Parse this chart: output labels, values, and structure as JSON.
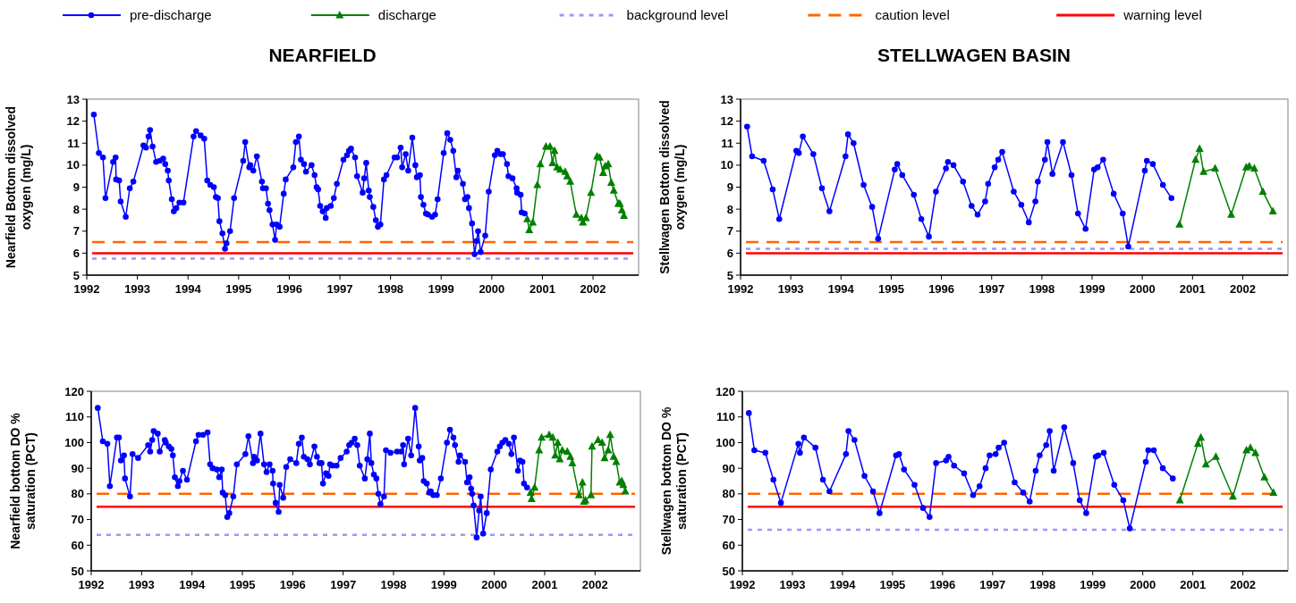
{
  "chart_data": [
    {
      "type": "line",
      "title": "NEARFIELD",
      "ylabel": "Nearfield Bottom dissolved oxygen (mg/L)",
      "xlim": [
        1992,
        2002.9
      ],
      "xticks": [
        1992,
        1993,
        1994,
        1995,
        1996,
        1997,
        1998,
        1999,
        2000,
        2001,
        2002
      ],
      "ylim": [
        5,
        13
      ],
      "yticks": [
        5,
        6,
        7,
        8,
        9,
        10,
        11,
        12,
        13
      ],
      "legend": "top",
      "series": [
        {
          "name": "pre-discharge",
          "color": "#0000ff",
          "marker": "circle",
          "x": [
            1992.14,
            1992.24,
            1992.32,
            1992.37,
            1992.52,
            1992.57,
            1992.58,
            1992.64,
            1992.67,
            1992.77,
            1992.85,
            1992.92,
            1993.12,
            1993.17,
            1993.22,
            1993.25,
            1993.3,
            1993.37,
            1993.44,
            1993.51,
            1993.55,
            1993.6,
            1993.62,
            1993.68,
            1993.72,
            1993.77,
            1993.83,
            1993.91,
            1994.11,
            1994.16,
            1994.25,
            1994.32,
            1994.38,
            1994.44,
            1994.51,
            1994.55,
            1994.59,
            1994.62,
            1994.68,
            1994.73,
            1994.76,
            1994.83,
            1994.91,
            1995.09,
            1995.13,
            1995.21,
            1995.23,
            1995.29,
            1995.36,
            1995.46,
            1995.48,
            1995.54,
            1995.58,
            1995.61,
            1995.67,
            1995.72,
            1995.75,
            1995.81,
            1995.89,
            1995.93,
            1996.08,
            1996.13,
            1996.19,
            1996.23,
            1996.29,
            1996.33,
            1996.44,
            1996.5,
            1996.54,
            1996.57,
            1996.61,
            1996.66,
            1996.72,
            1996.74,
            1996.82,
            1996.88,
            1996.94,
            1997.07,
            1997.14,
            1997.18,
            1997.22,
            1997.3,
            1997.34,
            1997.45,
            1997.48,
            1997.52,
            1997.57,
            1997.59,
            1997.66,
            1997.71,
            1997.75,
            1997.8,
            1997.87,
            1997.92,
            1998.08,
            1998.13,
            1998.2,
            1998.23,
            1998.3,
            1998.35,
            1998.43,
            1998.49,
            1998.52,
            1998.58,
            1998.6,
            1998.65,
            1998.7,
            1998.74,
            1998.82,
            1998.88,
            1998.93,
            1999.05,
            1999.12,
            1999.18,
            1999.24,
            1999.3,
            1999.33,
            1999.43,
            1999.47,
            1999.52,
            1999.55,
            1999.61,
            1999.66,
            1999.7,
            1999.73,
            1999.78,
            1999.87,
            1999.94,
            2000.06,
            2000.11,
            2000.17,
            2000.22,
            2000.3,
            2000.33,
            2000.41,
            2000.49,
            2000.5,
            2000.57,
            2000.59,
            2000.65
          ],
          "values": [
            12.3,
            10.55,
            10.35,
            8.5,
            10.15,
            10.35,
            9.35,
            9.3,
            8.35,
            7.65,
            8.95,
            9.25,
            10.9,
            10.8,
            11.3,
            11.6,
            10.85,
            10.15,
            10.2,
            10.3,
            10.05,
            9.75,
            9.3,
            8.45,
            7.9,
            8.05,
            8.3,
            8.3,
            11.3,
            11.55,
            11.35,
            11.2,
            9.3,
            9.1,
            9,
            8.55,
            8.5,
            7.45,
            6.9,
            6.2,
            6.45,
            7,
            8.5,
            10.2,
            11.05,
            9.9,
            10,
            9.75,
            10.4,
            9.25,
            8.95,
            8.95,
            8.25,
            7.95,
            7.3,
            6.6,
            7.3,
            7.2,
            8.7,
            9.35,
            9.9,
            11.05,
            11.3,
            10.25,
            10.05,
            9.7,
            10,
            9.55,
            9,
            8.9,
            8.15,
            7.9,
            7.6,
            8.05,
            8.15,
            8.5,
            9.15,
            10.25,
            10.45,
            10.65,
            10.75,
            10.35,
            9.5,
            8.75,
            9.4,
            10.1,
            8.85,
            8.55,
            8.1,
            7.5,
            7.2,
            7.3,
            9.35,
            9.55,
            10.35,
            10.35,
            10.8,
            9.9,
            10.5,
            9.75,
            11.25,
            10,
            9.45,
            9.55,
            8.55,
            8.2,
            7.8,
            7.75,
            7.65,
            7.75,
            8.45,
            10.55,
            11.45,
            11.15,
            10.65,
            9.45,
            9.75,
            9.15,
            8.45,
            8.55,
            8.05,
            7.35,
            5.95,
            6.55,
            7,
            6.05,
            6.8,
            8.8,
            10.45,
            10.65,
            10.5,
            10.5,
            10.05,
            9.5,
            9.4,
            8.95,
            8.75,
            8.65,
            7.85,
            7.8
          ]
        },
        {
          "name": "discharge",
          "color": "#008000",
          "marker": "triangle",
          "x": [
            2000.7,
            2000.74,
            2000.81,
            2000.9,
            2000.96,
            2001.07,
            2001.15,
            2001.2,
            2001.24,
            2001.29,
            2001.35,
            2001.45,
            2001.49,
            2001.55,
            2001.67,
            2001.77,
            2001.8,
            2001.86,
            2001.96,
            2002.08,
            2002.13,
            2002.2,
            2002.24,
            2002.3,
            2002.36,
            2002.41,
            2002.5,
            2002.53,
            2002.57,
            2002.61
          ],
          "values": [
            7.55,
            7.05,
            7.4,
            9.1,
            10.05,
            10.85,
            10.85,
            10.1,
            10.65,
            9.9,
            9.8,
            9.7,
            9.5,
            9.25,
            7.75,
            7.6,
            7.4,
            7.6,
            8.75,
            10.4,
            10.35,
            9.65,
            9.95,
            10.05,
            9.2,
            8.85,
            8.25,
            8.25,
            7.95,
            7.7
          ]
        }
      ],
      "ref_lines": [
        {
          "axis": "y",
          "value": 5.75,
          "label": "background level",
          "color": "#9999ff",
          "line_style": "dotted"
        },
        {
          "axis": "y",
          "value": 6.5,
          "label": "caution level",
          "color": "#ff6600",
          "line_style": "dashed"
        },
        {
          "axis": "y",
          "value": 6,
          "label": "warning level",
          "color": "#ff0000",
          "line_style": "solid"
        }
      ]
    },
    {
      "type": "line",
      "title": "STELLWAGEN BASIN",
      "ylabel": "Stellwagen Bottom dissolved oxygen (mg/L)",
      "xlim": [
        1992,
        2002.9
      ],
      "xticks": [
        1992,
        1993,
        1994,
        1995,
        1996,
        1997,
        1998,
        1999,
        2000,
        2001,
        2002
      ],
      "ylim": [
        5,
        13
      ],
      "yticks": [
        5,
        6,
        7,
        8,
        9,
        10,
        11,
        12,
        13
      ],
      "series": [
        {
          "color": "#0000ff",
          "marker": "circle",
          "x": [
            1992.13,
            1992.23,
            1992.46,
            1992.64,
            1992.77,
            1993.11,
            1993.16,
            1993.24,
            1993.45,
            1993.62,
            1993.77,
            1994.09,
            1994.14,
            1994.25,
            1994.45,
            1994.62,
            1994.74,
            1995.07,
            1995.12,
            1995.22,
            1995.45,
            1995.6,
            1995.75,
            1995.89,
            1996.09,
            1996.13,
            1996.24,
            1996.43,
            1996.6,
            1996.72,
            1996.87,
            1996.93,
            1997.06,
            1997.13,
            1997.21,
            1997.44,
            1997.59,
            1997.74,
            1997.87,
            1997.92,
            1998.06,
            1998.11,
            1998.21,
            1998.42,
            1998.59,
            1998.72,
            1998.87,
            1999.04,
            1999.11,
            1999.22,
            1999.43,
            1999.61,
            1999.72,
            2000.05,
            2000.09,
            2000.21,
            2000.41,
            2000.58
          ],
          "values": [
            11.75,
            10.4,
            10.2,
            8.9,
            7.55,
            10.65,
            10.55,
            11.3,
            10.5,
            8.95,
            7.9,
            10.4,
            11.4,
            11,
            9.1,
            8.1,
            6.65,
            9.8,
            10.05,
            9.55,
            8.65,
            7.55,
            6.75,
            8.8,
            9.85,
            10.15,
            10,
            9.25,
            8.15,
            7.75,
            8.35,
            9.15,
            9.9,
            10.25,
            10.6,
            8.8,
            8.2,
            7.4,
            8.35,
            9.25,
            10.25,
            11.05,
            9.6,
            11.05,
            9.55,
            7.8,
            7.1,
            9.8,
            9.9,
            10.25,
            8.7,
            7.8,
            6.3,
            9.75,
            10.2,
            10.05,
            9.1,
            8.5
          ]
        },
        {
          "color": "#008000",
          "marker": "triangle",
          "x": [
            2000.74,
            2001.06,
            2001.14,
            2001.22,
            2001.45,
            2001.77,
            2002.07,
            2002.13,
            2002.23,
            2002.4,
            2002.6
          ],
          "values": [
            7.3,
            10.25,
            10.75,
            9.7,
            9.85,
            7.75,
            9.9,
            9.95,
            9.85,
            8.8,
            7.9
          ]
        }
      ],
      "ref_lines": [
        {
          "axis": "y",
          "value": 6.2,
          "color": "#9999ff",
          "line_style": "dotted"
        },
        {
          "axis": "y",
          "value": 6.5,
          "color": "#ff6600",
          "line_style": "dashed"
        },
        {
          "axis": "y",
          "value": 6,
          "color": "#ff0000",
          "line_style": "solid"
        }
      ]
    },
    {
      "type": "line",
      "ylabel": "Nearfield bottom DO % saturation (PCT)",
      "xlim": [
        1992,
        2002.9
      ],
      "xticks": [
        1992,
        1993,
        1994,
        1995,
        1996,
        1997,
        1998,
        1999,
        2000,
        2001,
        2002
      ],
      "ylim": [
        50,
        120
      ],
      "yticks": [
        50,
        60,
        70,
        80,
        90,
        100,
        110,
        120
      ],
      "series": [
        {
          "color": "#0000ff",
          "marker": "circle",
          "x": [
            1992.13,
            1992.23,
            1992.32,
            1992.37,
            1992.51,
            1992.55,
            1992.59,
            1992.65,
            1992.67,
            1992.77,
            1992.82,
            1992.93,
            1993.13,
            1993.17,
            1993.21,
            1993.24,
            1993.32,
            1993.36,
            1993.46,
            1993.48,
            1993.54,
            1993.59,
            1993.62,
            1993.66,
            1993.72,
            1993.75,
            1993.82,
            1993.9,
            1994.08,
            1994.13,
            1994.22,
            1994.31,
            1994.36,
            1994.41,
            1994.49,
            1994.54,
            1994.59,
            1994.61,
            1994.66,
            1994.7,
            1994.74,
            1994.82,
            1994.89,
            1995.06,
            1995.12,
            1995.21,
            1995.23,
            1995.29,
            1995.36,
            1995.43,
            1995.48,
            1995.54,
            1995.6,
            1995.61,
            1995.66,
            1995.72,
            1995.74,
            1995.81,
            1995.87,
            1995.95,
            1996.07,
            1996.12,
            1996.18,
            1996.22,
            1996.29,
            1996.34,
            1996.43,
            1996.48,
            1996.53,
            1996.57,
            1996.6,
            1996.66,
            1996.71,
            1996.74,
            1996.79,
            1996.87,
            1996.95,
            1997.07,
            1997.12,
            1997.17,
            1997.23,
            1997.28,
            1997.33,
            1997.43,
            1997.48,
            1997.53,
            1997.56,
            1997.61,
            1997.66,
            1997.7,
            1997.74,
            1997.81,
            1997.85,
            1997.94,
            1998.07,
            1998.15,
            1998.19,
            1998.21,
            1998.29,
            1998.35,
            1998.43,
            1998.5,
            1998.52,
            1998.57,
            1998.6,
            1998.66,
            1998.71,
            1998.74,
            1998.79,
            1998.86,
            1998.94,
            1999.06,
            1999.12,
            1999.19,
            1999.22,
            1999.29,
            1999.32,
            1999.42,
            1999.46,
            1999.51,
            1999.54,
            1999.56,
            1999.59,
            1999.65,
            1999.7,
            1999.73,
            1999.78,
            1999.85,
            1999.93,
            2000.06,
            2000.11,
            2000.16,
            2000.22,
            2000.29,
            2000.34,
            2000.39,
            2000.47,
            2000.51,
            2000.56,
            2000.59,
            2000.65
          ],
          "values": [
            113.5,
            100.5,
            99.5,
            83,
            102,
            102,
            93,
            95,
            86,
            79,
            95.5,
            94,
            99,
            96.5,
            101,
            104.5,
            103.5,
            96.5,
            101,
            100,
            98.5,
            97.5,
            95,
            86.5,
            83,
            85,
            89,
            85.5,
            100.5,
            103,
            103,
            104,
            91.5,
            90,
            89.5,
            86.5,
            89.5,
            80.5,
            79.5,
            71,
            72.5,
            79,
            91.5,
            95.5,
            102.5,
            92,
            94.5,
            93,
            103.5,
            91.5,
            88.5,
            91.5,
            89,
            84,
            76.5,
            73,
            83.5,
            78.5,
            90.5,
            93.5,
            92,
            99.5,
            102,
            94.5,
            93.5,
            91.5,
            98.5,
            94.5,
            92,
            92,
            84,
            88,
            87,
            91.5,
            91,
            91,
            94,
            96.5,
            99,
            100,
            101.5,
            99,
            91,
            86,
            93.5,
            103.5,
            92,
            87.5,
            86,
            80,
            76,
            79,
            97,
            96,
            96.5,
            96.5,
            99,
            91.5,
            101.5,
            95,
            113.5,
            98.5,
            93,
            94,
            85,
            84,
            80.5,
            81,
            79.5,
            79.5,
            86,
            100,
            105,
            102,
            99,
            92.5,
            95,
            92.5,
            84.5,
            86.5,
            82,
            80,
            75.5,
            63,
            73.5,
            79,
            64.5,
            72.5,
            89.5,
            96.5,
            98.5,
            100,
            101,
            99.5,
            95.5,
            102,
            89,
            93,
            92.5,
            84,
            82.5
          ]
        },
        {
          "color": "#008000",
          "marker": "triangle",
          "x": [
            2000.72,
            2000.74,
            2000.8,
            2000.89,
            2000.94,
            2001.09,
            2001.16,
            2001.21,
            2001.26,
            2001.3,
            2001.35,
            2001.45,
            2001.51,
            2001.55,
            2001.68,
            2001.75,
            2001.78,
            2001.81,
            2001.92,
            2001.94,
            2002.06,
            2002.14,
            2002.19,
            2002.26,
            2002.3,
            2002.37,
            2002.42,
            2002.49,
            2002.53,
            2002.56,
            2002.6
          ],
          "values": [
            80.5,
            78,
            82.5,
            97,
            102,
            103,
            102,
            95,
            100,
            93.5,
            97,
            96.5,
            94.5,
            92,
            79.5,
            84.5,
            77,
            77.5,
            79.5,
            98.5,
            101,
            100,
            94,
            97,
            103,
            94.5,
            92.5,
            84.5,
            85,
            83.5,
            81
          ]
        }
      ],
      "ref_lines": [
        {
          "axis": "y",
          "value": 64,
          "color": "#9999ff",
          "line_style": "dotted"
        },
        {
          "axis": "y",
          "value": 80,
          "color": "#ff6600",
          "line_style": "dashed"
        },
        {
          "axis": "y",
          "value": 75,
          "color": "#ff0000",
          "line_style": "solid"
        }
      ]
    },
    {
      "type": "line",
      "ylabel": "Stellwagen bottom DO % saturation (PCT)",
      "xlim": [
        1992,
        2002.9
      ],
      "xticks": [
        1992,
        1993,
        1994,
        1995,
        1996,
        1997,
        1998,
        1999,
        2000,
        2001,
        2002
      ],
      "ylim": [
        50,
        120
      ],
      "yticks": [
        50,
        60,
        70,
        80,
        90,
        100,
        110,
        120
      ],
      "series": [
        {
          "color": "#0000ff",
          "marker": "circle",
          "x": [
            1992.13,
            1992.24,
            1992.46,
            1992.62,
            1992.77,
            1993.12,
            1993.15,
            1993.23,
            1993.46,
            1993.61,
            1993.74,
            1994.07,
            1994.12,
            1994.24,
            1994.44,
            1994.61,
            1994.74,
            1995.07,
            1995.13,
            1995.23,
            1995.44,
            1995.61,
            1995.74,
            1995.87,
            1996.07,
            1996.12,
            1996.23,
            1996.43,
            1996.61,
            1996.74,
            1996.86,
            1996.94,
            1997.06,
            1997.12,
            1997.23,
            1997.44,
            1997.61,
            1997.74,
            1997.86,
            1997.94,
            1998.07,
            1998.14,
            1998.22,
            1998.43,
            1998.61,
            1998.74,
            1998.87,
            1999.06,
            1999.11,
            1999.22,
            1999.43,
            1999.61,
            1999.74,
            2000.06,
            2000.11,
            2000.22,
            2000.4,
            2000.6
          ],
          "values": [
            111.5,
            97,
            96,
            85.5,
            76.5,
            99.5,
            96,
            102,
            98,
            85.5,
            81,
            95.5,
            104.5,
            101,
            87,
            81,
            72.5,
            95,
            95.5,
            89.5,
            83.5,
            74.5,
            71,
            92,
            93,
            94.5,
            91,
            88,
            79.5,
            83,
            90,
            95,
            95.5,
            98,
            100,
            84.5,
            80.5,
            77,
            89,
            95,
            99,
            104.5,
            89,
            106,
            92,
            77.5,
            72.5,
            94.5,
            95,
            96,
            83.5,
            77.5,
            66.5,
            92.5,
            97,
            97,
            90,
            86
          ]
        },
        {
          "color": "#008000",
          "marker": "triangle",
          "x": [
            2000.74,
            2001.1,
            2001.16,
            2001.26,
            2001.46,
            2001.8,
            2002.07,
            2002.15,
            2002.25,
            2002.43,
            2002.61
          ],
          "values": [
            77.5,
            99.5,
            102,
            91.5,
            94.5,
            79,
            97,
            98,
            96,
            86.5,
            80.5
          ]
        }
      ],
      "ref_lines": [
        {
          "axis": "y",
          "value": 66,
          "color": "#9999ff",
          "line_style": "dotted"
        },
        {
          "axis": "y",
          "value": 80,
          "color": "#ff6600",
          "line_style": "dashed"
        },
        {
          "axis": "y",
          "value": 75,
          "color": "#ff0000",
          "line_style": "solid"
        }
      ]
    }
  ]
}
